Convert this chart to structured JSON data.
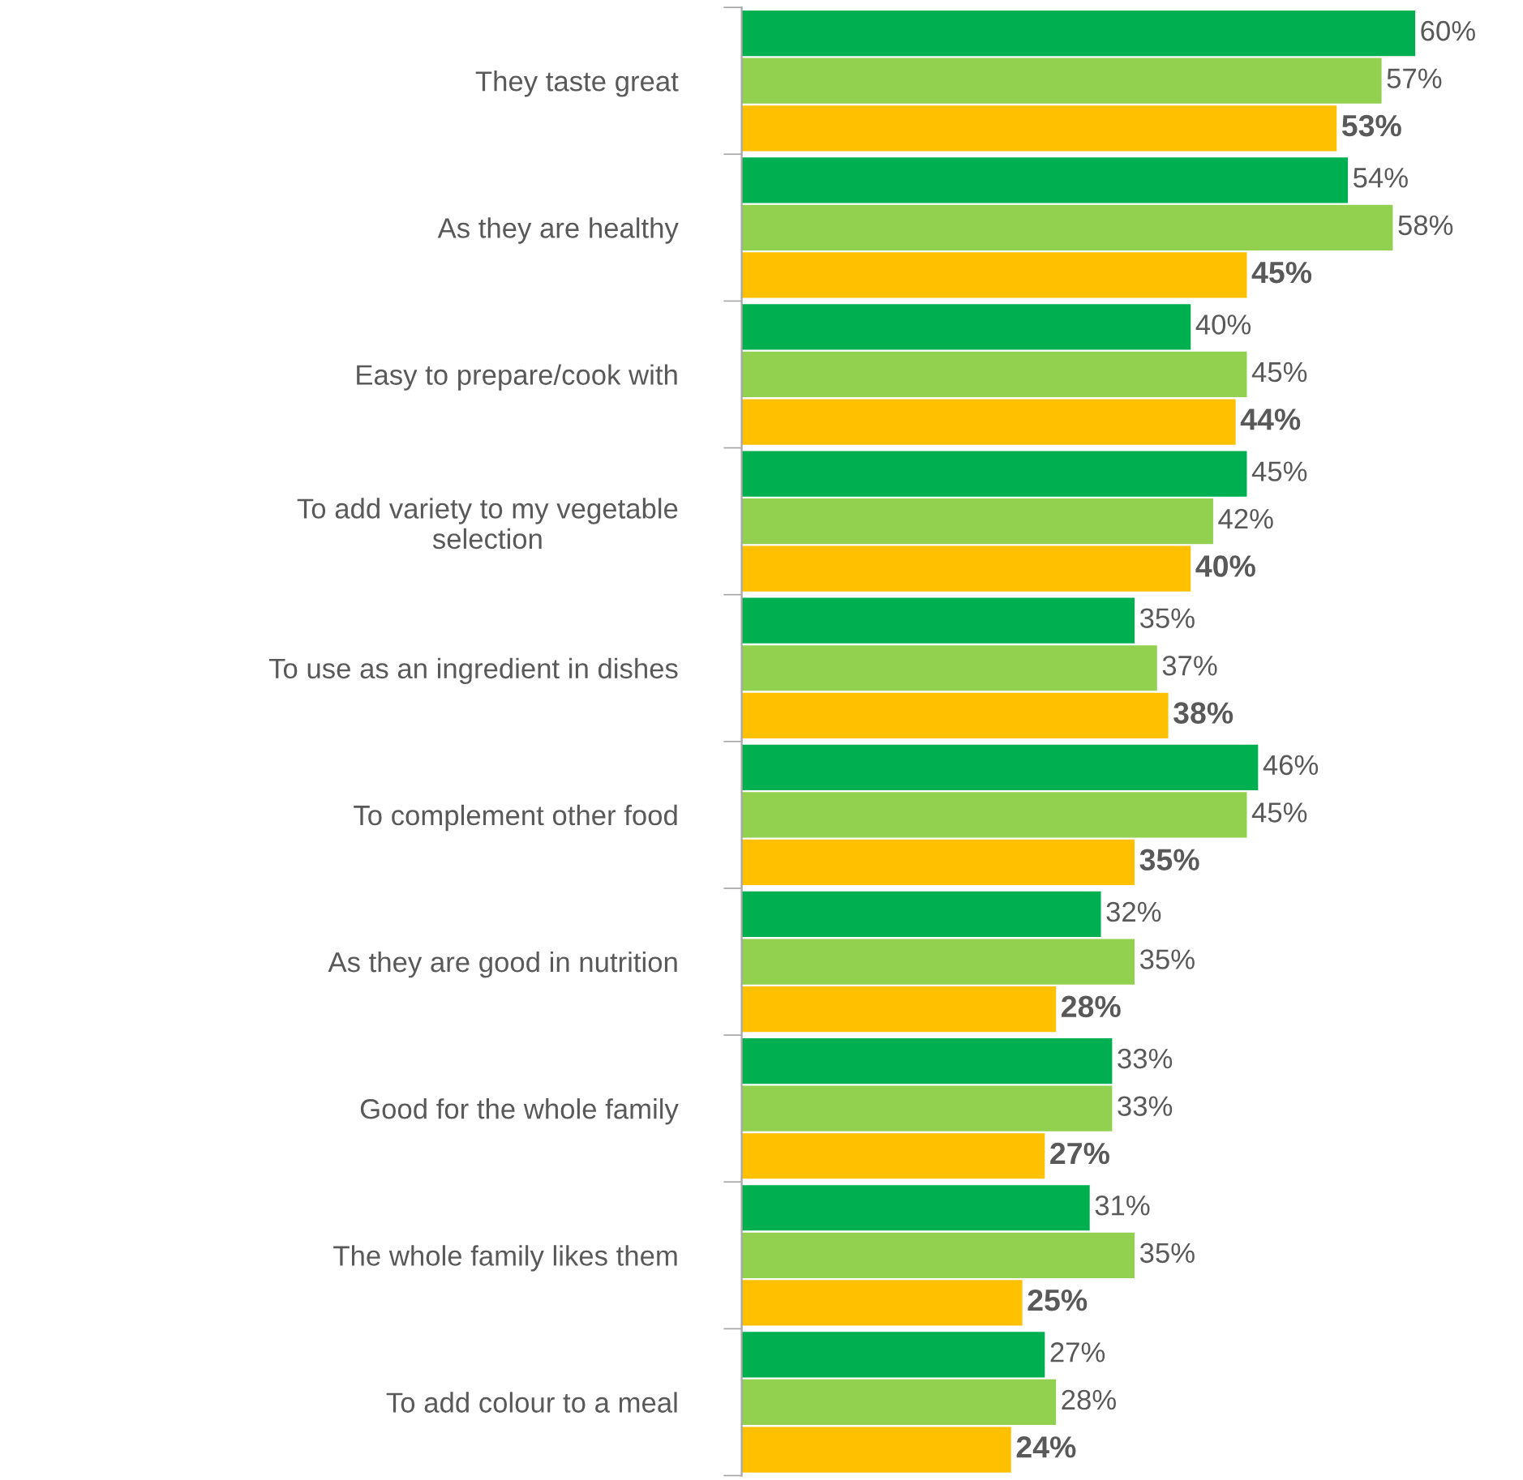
{
  "chart_data": {
    "type": "bar",
    "orientation": "horizontal",
    "tick_labels": "y",
    "categories": [
      "They taste great",
      "As they are healthy",
      "Easy to prepare/cook with",
      "To add variety to my vegetable\nselection",
      "To use as an ingredient in dishes",
      "To complement other food",
      "As they are good in nutrition",
      "Good for the whole family",
      "The whole family likes them",
      "To add colour to a meal"
    ],
    "series": [
      {
        "color": "#00b050",
        "values": [
          60,
          54,
          40,
          45,
          35,
          46,
          32,
          33,
          31,
          27
        ],
        "value_labels": [
          "60%",
          "54%",
          "40%",
          "45%",
          "35%",
          "46%",
          "32%",
          "33%",
          "31%",
          "27%"
        ]
      },
      {
        "color": "#92d050",
        "values": [
          57,
          58,
          45,
          42,
          37,
          45,
          35,
          33,
          35,
          28
        ],
        "value_labels": [
          "57%",
          "58%",
          "45%",
          "42%",
          "37%",
          "45%",
          "35%",
          "33%",
          "35%",
          "28%"
        ]
      },
      {
        "color": "#ffc000",
        "values": [
          53,
          45,
          44,
          40,
          38,
          35,
          28,
          27,
          25,
          24
        ],
        "value_labels": [
          "53%",
          "45%",
          "44%",
          "40%",
          "38%",
          "35%",
          "28%",
          "27%",
          "25%",
          "24%"
        ]
      }
    ]
  }
}
